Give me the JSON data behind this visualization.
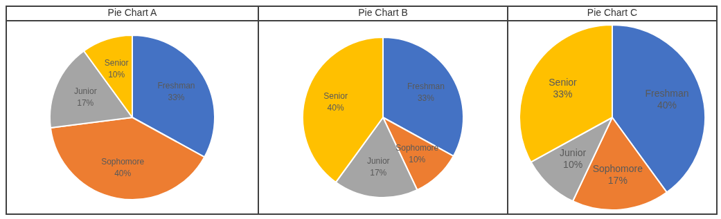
{
  "chart_data": [
    {
      "type": "pie",
      "title": "Pie Chart A",
      "categories": [
        "Freshman",
        "Sophomore",
        "Junior",
        "Senior"
      ],
      "values": [
        33,
        40,
        17,
        10
      ],
      "value_labels": [
        "33%",
        "40%",
        "17%",
        "10%"
      ],
      "colors": [
        "#4472c4",
        "#ed7d31",
        "#a5a5a5",
        "#ffc000"
      ],
      "legend": false
    },
    {
      "type": "pie",
      "title": "Pie Chart B",
      "categories": [
        "Freshman",
        "Sophomore",
        "Junior",
        "Senior"
      ],
      "values": [
        33,
        10,
        17,
        40
      ],
      "value_labels": [
        "33%",
        "10%",
        "17%",
        "40%"
      ],
      "colors": [
        "#4472c4",
        "#ed7d31",
        "#a5a5a5",
        "#ffc000"
      ],
      "legend": false
    },
    {
      "type": "pie",
      "title": "Pie Chart C",
      "categories": [
        "Freshman",
        "Sophomore",
        "Junior",
        "Senior"
      ],
      "values": [
        40,
        17,
        10,
        33
      ],
      "value_labels": [
        "40%",
        "17%",
        "10%",
        "33%"
      ],
      "colors": [
        "#4472c4",
        "#ed7d31",
        "#a5a5a5",
        "#ffc000"
      ],
      "legend": false
    }
  ]
}
